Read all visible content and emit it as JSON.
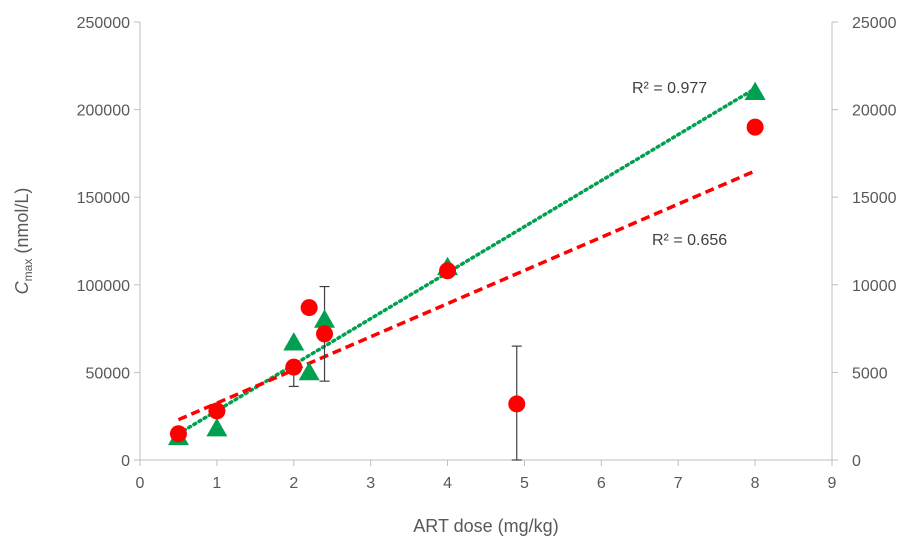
{
  "chart_data": {
    "type": "scatter",
    "xlabel": "ART dose (mg/kg)",
    "ylabel": {
      "main": "C",
      "sub": "max",
      "rest": " (nmol/L)"
    },
    "xlim": [
      0,
      9
    ],
    "ylim_left": [
      0,
      250000
    ],
    "ylim_right": [
      0,
      25000
    ],
    "x_ticks": [
      "0",
      "1",
      "2",
      "3",
      "4",
      "5",
      "6",
      "7",
      "8",
      "9"
    ],
    "y_ticks_left": [
      "0",
      "50000",
      "100000",
      "150000",
      "200000",
      "250000"
    ],
    "y_ticks_right": [
      "0",
      "5000",
      "10000",
      "15000",
      "20000",
      "25000"
    ],
    "grid": false,
    "series": [
      {
        "marker": "triangle",
        "color": "#00A050",
        "axis": "right",
        "points": [
          {
            "x": 0.5,
            "y": 1300
          },
          {
            "x": 1,
            "y": 1800
          },
          {
            "x": 2,
            "y": 6700
          },
          {
            "x": 2.2,
            "y": 5000
          },
          {
            "x": 2.4,
            "y": 8000
          },
          {
            "x": 4,
            "y": 11000
          },
          {
            "x": 8,
            "y": 21000
          }
        ],
        "trendline": {
          "style": "dotted",
          "x": [
            0.5,
            8
          ],
          "y": [
            1500,
            21200
          ],
          "r2_label": "R² = 0.977"
        }
      },
      {
        "marker": "circle",
        "color": "#FF0000",
        "axis": "left",
        "points": [
          {
            "x": 0.5,
            "y": 15000
          },
          {
            "x": 1,
            "y": 28000
          },
          {
            "x": 2,
            "y": 53000,
            "err_low": 42000,
            "err_high": 53000
          },
          {
            "x": 2.2,
            "y": 87000
          },
          {
            "x": 2.4,
            "y": 72000,
            "err_low": 45000,
            "err_high": 99000
          },
          {
            "x": 4,
            "y": 108000
          },
          {
            "x": 4.9,
            "y": 32000,
            "err_low": 0,
            "err_high": 65000
          },
          {
            "x": 8,
            "y": 190000
          }
        ],
        "trendline": {
          "style": "dashed",
          "x": [
            0.5,
            8
          ],
          "y": [
            23000,
            165000
          ],
          "r2_label": "R² = 0.656"
        }
      }
    ]
  }
}
